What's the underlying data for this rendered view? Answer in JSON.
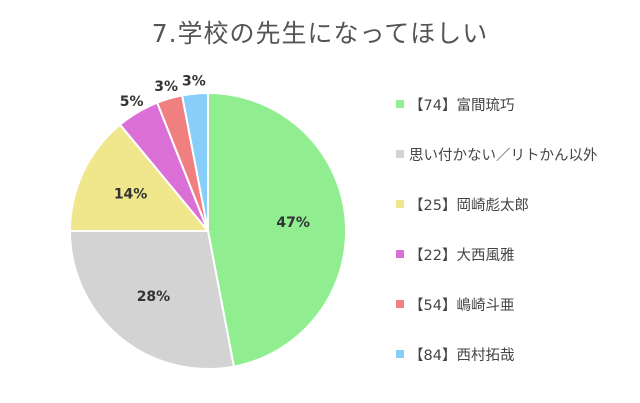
{
  "chart_data": {
    "type": "pie",
    "title": "7.学校の先生になってほしい",
    "slices": [
      {
        "label": "【74】富間琉巧",
        "value": 47,
        "display": "47%",
        "color": "#90EE90"
      },
      {
        "label": "思い付かない／リトかん以外",
        "value": 28,
        "display": "28%",
        "color": "#D3D3D3"
      },
      {
        "label": "【25】岡崎彪太郎",
        "value": 14,
        "display": "14%",
        "color": "#F0E68C"
      },
      {
        "label": "【22】大西風雅",
        "value": 5,
        "display": "5%",
        "color": "#DA70D6"
      },
      {
        "label": "【54】嶋崎斗亜",
        "value": 3,
        "display": "3%",
        "color": "#F08080"
      },
      {
        "label": "【84】西村拓哉",
        "value": 3,
        "display": "3%",
        "color": "#87CEFA"
      }
    ],
    "legend_position": "right"
  }
}
